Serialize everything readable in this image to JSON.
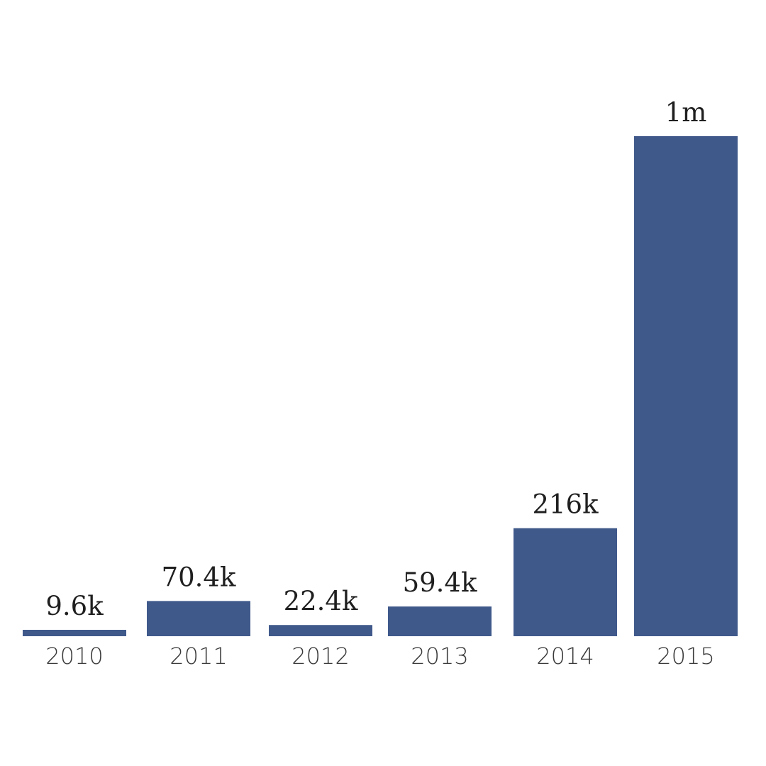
{
  "chart_data": {
    "type": "bar",
    "categories": [
      "2010",
      "2011",
      "2012",
      "2013",
      "2014",
      "2015"
    ],
    "values": [
      9600,
      70400,
      22400,
      59400,
      216000,
      1000000
    ],
    "data_labels": [
      "9.6k",
      "70.4k",
      "22.4k",
      "59.4k",
      "216k",
      "1m"
    ],
    "title": "",
    "xlabel": "",
    "ylabel": "",
    "ylim": [
      0,
      1000000
    ],
    "grid": false,
    "legend": "none",
    "colors": {
      "bar": "#40598B"
    }
  }
}
